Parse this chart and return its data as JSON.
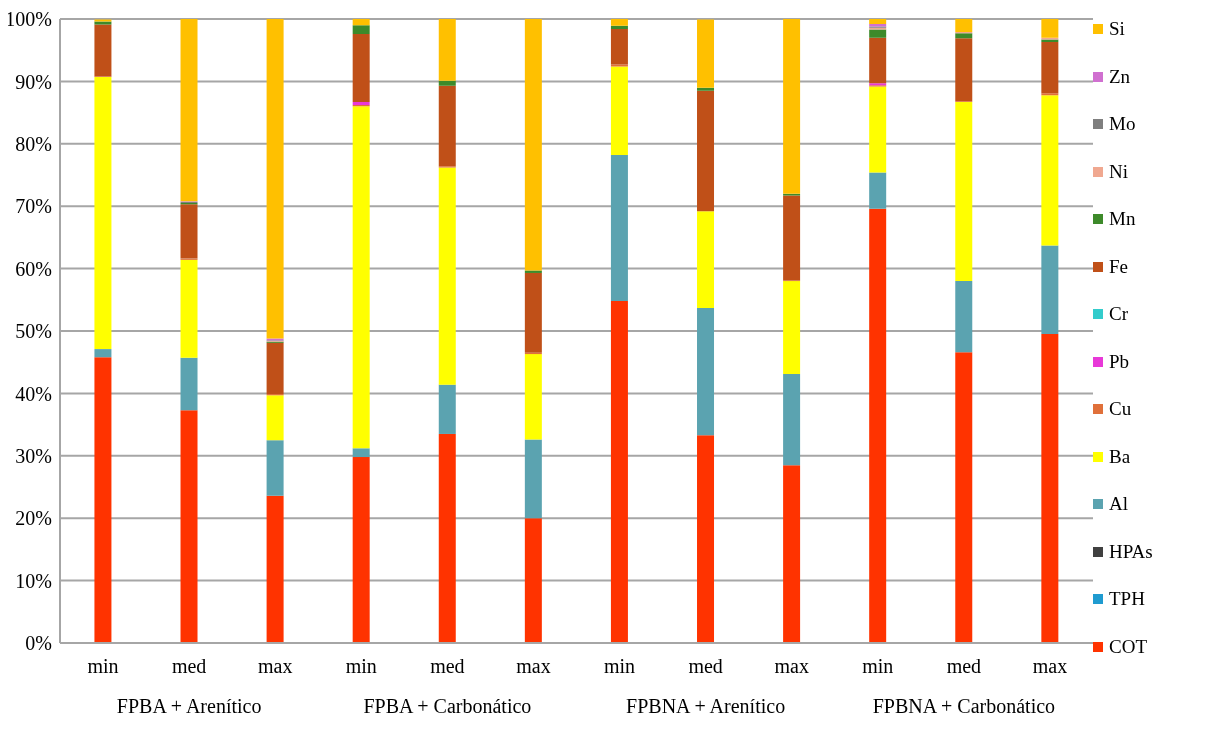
{
  "chart_data": {
    "type": "bar",
    "stacked": true,
    "categories": [
      "min",
      "med",
      "max",
      "min",
      "med",
      "max",
      "min",
      "med",
      "max",
      "min",
      "med",
      "max"
    ],
    "annotations": [
      "FPBA + Arenítico",
      "FPBA + Carbonático",
      "FPBNA + Arenítico",
      "FPBNA + Carbonático"
    ],
    "series": [
      {
        "name": "COT",
        "color": "#ff3300",
        "values": [
          45.8,
          37.3,
          23.6,
          29.8,
          33.5,
          20.0,
          54.8,
          33.3,
          28.5,
          69.6,
          46.6,
          49.5
        ]
      },
      {
        "name": "TPH",
        "color": "#1f9bd0",
        "values": [
          0,
          0,
          0,
          0,
          0,
          0,
          0,
          0,
          0,
          0,
          0,
          0
        ]
      },
      {
        "name": "HPAs",
        "color": "#404040",
        "values": [
          0,
          0,
          0,
          0,
          0,
          0,
          0,
          0,
          0,
          0,
          0,
          0
        ]
      },
      {
        "name": "Al",
        "color": "#5ba3b0",
        "values": [
          1.3,
          8.4,
          8.9,
          1.4,
          7.9,
          12.6,
          23.4,
          20.4,
          14.6,
          5.8,
          11.4,
          14.2
        ]
      },
      {
        "name": "Ba",
        "color": "#ffff00",
        "values": [
          43.6,
          15.7,
          7.2,
          54.8,
          34.8,
          13.7,
          14.2,
          15.5,
          14.9,
          13.8,
          28.7,
          24.1
        ]
      },
      {
        "name": "Cu",
        "color": "#e0703a",
        "values": [
          0.1,
          0.2,
          0.2,
          0.2,
          0.2,
          0.2,
          0.3,
          null,
          0.1,
          0.2,
          0.1,
          0.3
        ]
      },
      {
        "name": "Pb",
        "color": "#e838d8",
        "values": [
          0,
          0,
          0,
          0.5,
          0,
          0,
          0,
          0,
          0,
          0.3,
          0,
          0
        ]
      },
      {
        "name": "Cr",
        "color": "#33cccc",
        "values": [
          0,
          0,
          0,
          0,
          0,
          0,
          0,
          0,
          0,
          0,
          0,
          0
        ]
      },
      {
        "name": "Fe",
        "color": "#c05018",
        "values": [
          8.3,
          8.7,
          8.2,
          10.9,
          12.9,
          12.8,
          5.7,
          19.3,
          13.6,
          7.3,
          10.1,
          8.2
        ]
      },
      {
        "name": "Mn",
        "color": "#3d8a2a",
        "values": [
          0.5,
          0.2,
          0.2,
          1.4,
          0.8,
          0.4,
          0.5,
          0.5,
          0.3,
          1.3,
          0.8,
          0.4
        ]
      },
      {
        "name": "Ni",
        "color": "#f0a890",
        "values": [
          0,
          0,
          0.1,
          0,
          0,
          0,
          0,
          0,
          0,
          0.3,
          0.2,
          0.3
        ]
      },
      {
        "name": "Mo",
        "color": "#7f7f7f",
        "values": [
          null,
          0.2,
          0.1,
          0,
          0,
          0,
          0,
          0,
          0,
          0.2,
          0,
          0
        ]
      },
      {
        "name": "Zn",
        "color": "#d070d0",
        "values": [
          0,
          0.1,
          0.3,
          0,
          0,
          0,
          0,
          0,
          0,
          0.4,
          0,
          0
        ]
      },
      {
        "name": "Si",
        "color": "#ffc000",
        "values": [
          0.3,
          29.2,
          51.2,
          1.0,
          9.9,
          40.3,
          1.1,
          10.9,
          28.0,
          0.8,
          2.1,
          3.0
        ]
      }
    ],
    "ylim": [
      0,
      100
    ],
    "yticks": [
      {
        "value": 0,
        "label": "0%"
      },
      {
        "value": 10,
        "label": "10%"
      },
      {
        "value": 20,
        "label": "20%"
      },
      {
        "value": 30,
        "label": "30%"
      },
      {
        "value": 40,
        "label": "40%"
      },
      {
        "value": 50,
        "label": "50%"
      },
      {
        "value": 60,
        "label": "60%"
      },
      {
        "value": 70,
        "label": "70%"
      },
      {
        "value": 80,
        "label": "80%"
      },
      {
        "value": 90,
        "label": "90%"
      },
      {
        "value": 100,
        "label": "100%"
      }
    ],
    "grid": "y",
    "legend": "right"
  }
}
